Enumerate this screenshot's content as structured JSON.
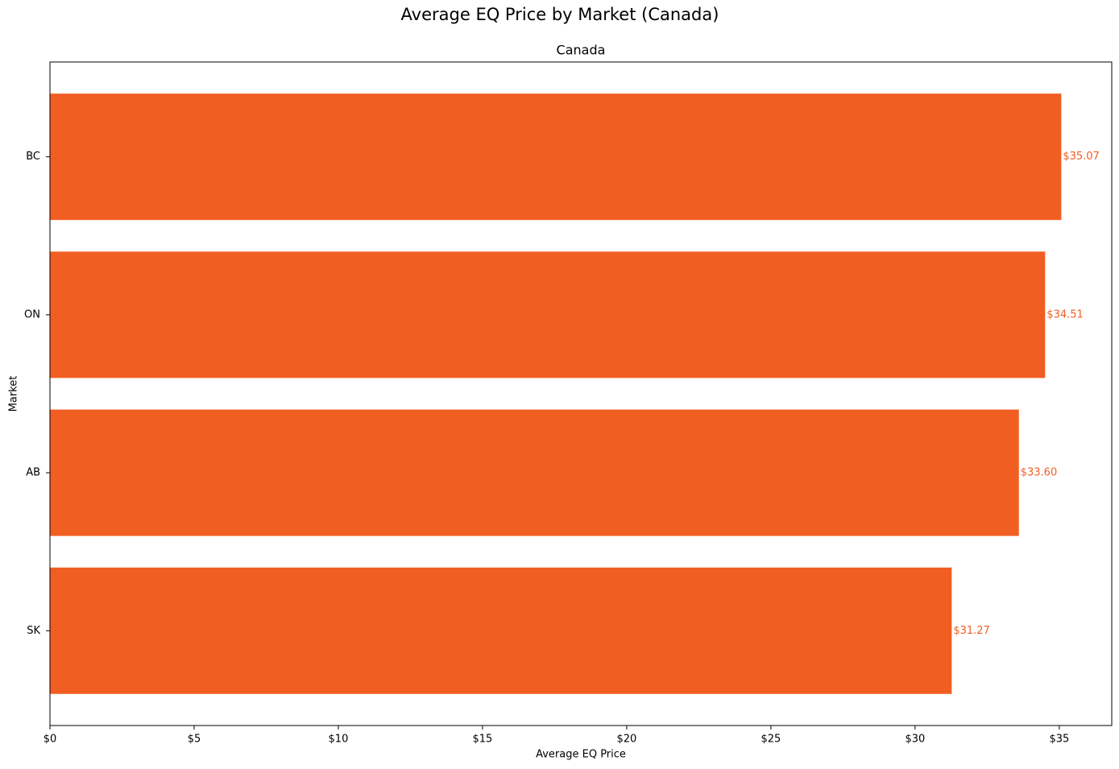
{
  "chart_data": {
    "type": "barh",
    "title": "Average EQ Price by Market (Canada)",
    "subtitle": "Canada",
    "x_label": "Average EQ Price",
    "y_label": "Market",
    "categories": [
      "BC",
      "ON",
      "AB",
      "SK"
    ],
    "values": [
      35.07,
      34.51,
      33.6,
      31.27
    ],
    "value_labels": [
      "$35.07",
      "$34.51",
      "$33.60",
      "$31.27"
    ],
    "color": "#f15e22",
    "xlim": [
      0,
      36.82
    ],
    "xticks": [
      {
        "value": 0,
        "label": "$0"
      },
      {
        "value": 5,
        "label": "$5"
      },
      {
        "value": 10,
        "label": "$10"
      },
      {
        "value": 15,
        "label": "$15"
      },
      {
        "value": 20,
        "label": "$20"
      },
      {
        "value": 25,
        "label": "$25"
      },
      {
        "value": 30,
        "label": "$30"
      },
      {
        "value": 35,
        "label": "$35"
      }
    ],
    "grid": false
  }
}
